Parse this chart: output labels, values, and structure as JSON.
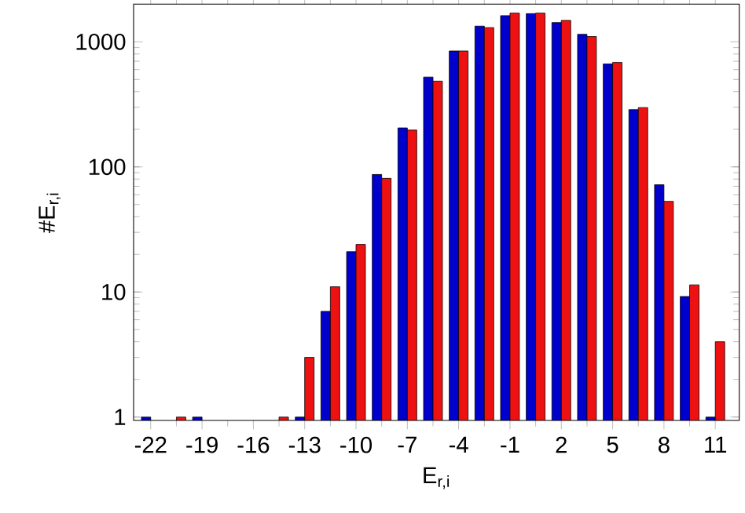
{
  "chart_data": {
    "type": "bar",
    "xlabel": "E$_{r,i}$",
    "ylabel": "#E$_{r,i}$",
    "log": "y",
    "grid": false,
    "x": [
      -22,
      -20.5,
      -19,
      -17.5,
      -16,
      -14.5,
      -13,
      -11.5,
      -10,
      -8.5,
      -7,
      -5.5,
      -4,
      -2.5,
      -1,
      0.5,
      2,
      3.5,
      5,
      6.5,
      8,
      9.5,
      11
    ],
    "series": [
      {
        "color": "#0000cc",
        "values": [
          1,
          null,
          1,
          null,
          null,
          null,
          1,
          7,
          21,
          87,
          205,
          523,
          845,
          1336,
          1620,
          1680,
          1427,
          1148,
          665,
          287,
          72,
          9.2,
          1
        ]
      },
      {
        "color": "#ee1111",
        "values": [
          null,
          1,
          null,
          null,
          null,
          1,
          3,
          11,
          24,
          81,
          197,
          485,
          845,
          1298,
          1695,
          1695,
          1483,
          1102,
          684,
          298,
          53,
          11.4,
          4
        ]
      }
    ],
    "xlim": [
      -23,
      12.4
    ],
    "ylim": [
      0.94,
      2000
    ],
    "xticks": [
      -22,
      -19,
      -16,
      -13,
      -10,
      -7,
      -4,
      -1,
      2,
      5,
      8,
      11
    ],
    "yticks": [
      1,
      10,
      100,
      1000
    ]
  }
}
